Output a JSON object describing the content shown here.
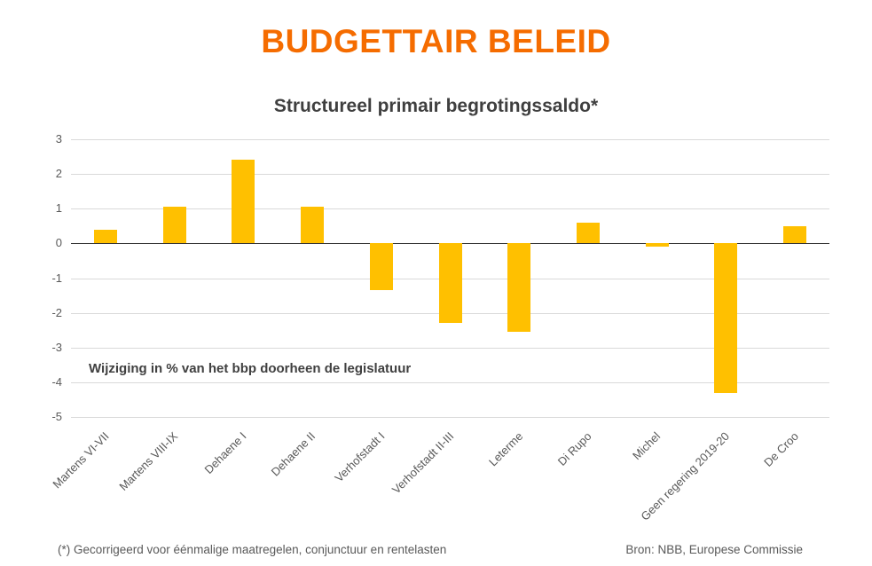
{
  "header": {
    "title": "BUDGETTAIR BELEID"
  },
  "chart_data": {
    "type": "bar",
    "title": "Structureel primair begrotingssaldo*",
    "categories": [
      "Martens VI-VII",
      "Martens VIII-IX",
      "Dehaene I",
      "Dehaene II",
      "Verhofstadt I",
      "Verhofstadt II-III",
      "Leterme",
      "Di Rupo",
      "Michel",
      "Geen regering 2019-20",
      "De Croo"
    ],
    "values": [
      0.4,
      1.05,
      2.4,
      1.05,
      -1.35,
      -2.3,
      -2.55,
      0.6,
      -0.1,
      -4.3,
      0.5
    ],
    "xlabel": "",
    "ylabel": "",
    "ylim": [
      -5,
      3
    ],
    "yticks": [
      3,
      2,
      1,
      0,
      -1,
      -2,
      -3,
      -4,
      -5
    ],
    "grid": true,
    "legend": "none",
    "bar_color": "#FFC000",
    "annotation": "Wijziging in % van het bbp doorheen de legislatuur"
  },
  "footer": {
    "footnote": "(*) Gecorrigeerd voor éénmalige maatregelen, conjunctuur en rentelasten",
    "source": "Bron: NBB, Europese Commissie"
  },
  "colors": {
    "accent": "#F56C00",
    "bar": "#FFC000",
    "gridline": "#D9D9D9",
    "axis": "#333333",
    "text": "#595959"
  }
}
